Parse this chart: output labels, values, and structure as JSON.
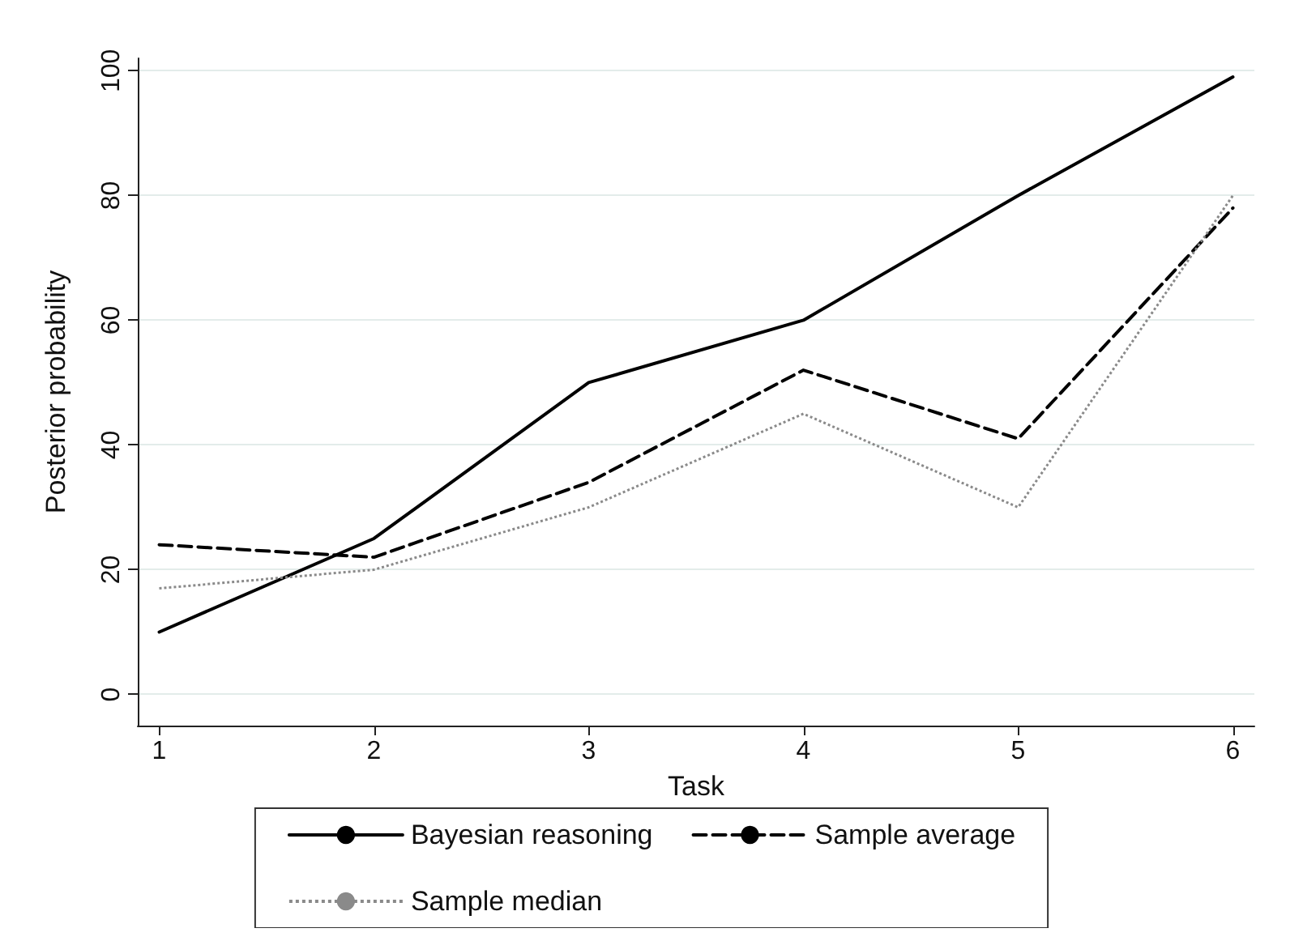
{
  "chart_data": {
    "type": "line",
    "xlabel": "Task",
    "ylabel": "Posterior probability",
    "x": [
      1,
      2,
      3,
      4,
      5,
      6
    ],
    "series": [
      {
        "name": "Bayesian reasoning",
        "color": "#000000",
        "line_style": "solid",
        "values": [
          10,
          25,
          50,
          60,
          80,
          99
        ]
      },
      {
        "name": "Sample average",
        "color": "#000000",
        "line_style": "dashed",
        "values": [
          24,
          22,
          34,
          52,
          41,
          78
        ]
      },
      {
        "name": "Sample median",
        "color": "#8a8a8a",
        "line_style": "dotted",
        "values": [
          17,
          20,
          30,
          45,
          30,
          80
        ]
      }
    ],
    "xlim": [
      0.9,
      6.1
    ],
    "xticks": [
      1,
      2,
      3,
      4,
      5,
      6
    ],
    "ylim": [
      -5,
      102
    ],
    "yticks": [
      0,
      20,
      40,
      60,
      80,
      100
    ],
    "grid": "y",
    "legend": "bottom",
    "marker": "none"
  }
}
